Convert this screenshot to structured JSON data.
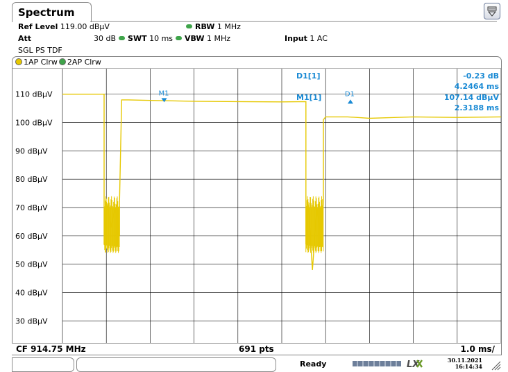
{
  "window": {
    "tab_title": "Spectrum"
  },
  "params": {
    "ref_level_label": "Ref Level",
    "ref_level_value": "119.00 dBµV",
    "att_label": "Att",
    "att_value": "30 dB",
    "swt_label": "SWT",
    "swt_value": "10 ms",
    "rbw_label": "RBW",
    "rbw_value": "1 MHz",
    "vbw_label": "VBW",
    "vbw_value": "1 MHz",
    "input_label": "Input",
    "input_value": "1 AC",
    "mode": "SGL PS TDF"
  },
  "traces": [
    {
      "label": "1AP Clrw",
      "color": "#e6c800"
    },
    {
      "label": "2AP Clrw",
      "color": "#3fa44a"
    }
  ],
  "markers": {
    "d1_name": "D1[1]",
    "d1_level": "-0.23 dB",
    "d1_time": "4.2464 ms",
    "m1_name": "M1[1]",
    "m1_level": "107.14 dBµV",
    "m1_time": "2.3188 ms",
    "m1_plot_label": "M1",
    "d1_plot_label": "D1"
  },
  "colors": {
    "trace": "#e6c800",
    "marker": "#1a8ad4",
    "grid": "#000000"
  },
  "chart_data": {
    "type": "line",
    "y_ticks": [
      "110 dBµV",
      "100 dBµV",
      "90 dBµV",
      "80 dBµV",
      "70 dBµV",
      "60 dBµV",
      "50 dBµV",
      "40 dBµV",
      "30 dBµV"
    ],
    "ylim": [
      22,
      119
    ],
    "xlim": [
      0,
      10
    ],
    "x_unit": "ms",
    "series": [
      {
        "color": "#e6c800",
        "x": [
          0,
          0.95,
          0.95,
          1.0,
          1.1,
          1.2,
          1.3,
          1.3,
          1.35,
          1.4,
          1.5,
          2.0,
          3.0,
          4.0,
          5.0,
          5.55,
          5.55,
          5.6,
          5.7,
          5.8,
          5.9,
          5.95,
          5.95,
          6.0,
          6.5,
          7.0,
          8.0,
          9.0,
          10.0
        ],
        "y": [
          110,
          110,
          57,
          72,
          63,
          70,
          60,
          72,
          108,
          108,
          108,
          107.8,
          107.5,
          107.4,
          107.3,
          107.4,
          57,
          72,
          48,
          70,
          60,
          72,
          101,
          102,
          102,
          101.5,
          102,
          101.8,
          102
        ]
      }
    ],
    "markers": [
      {
        "name": "M1",
        "x": 2.3188,
        "y": 107.14
      },
      {
        "name": "D1",
        "x": 6.5652,
        "y": 106.91
      }
    ],
    "center_label": "CF 914.75 MHz",
    "points_label": "691 pts",
    "div_label": "1.0 ms/"
  },
  "status": {
    "ready": "Ready",
    "date": "30.11.2021",
    "time": "16:14:34"
  }
}
